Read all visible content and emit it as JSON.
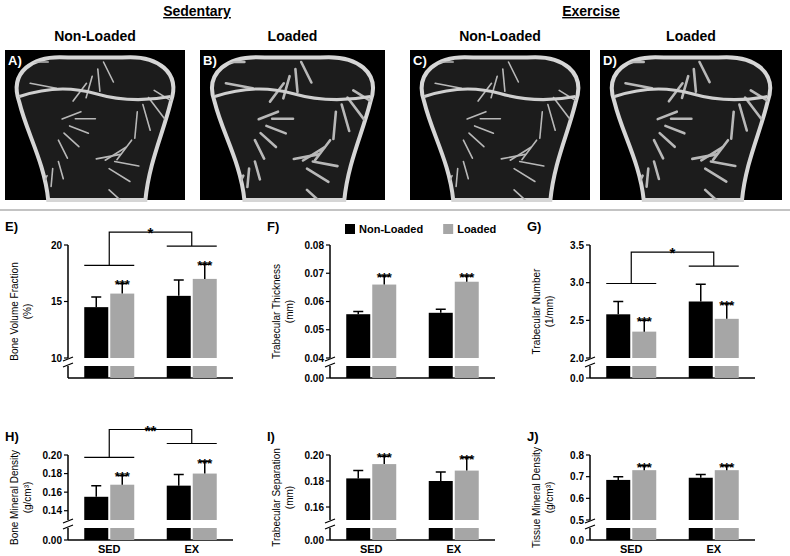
{
  "images": {
    "groups": [
      {
        "title": "Sedentary",
        "panels": [
          {
            "label": "A)",
            "title": "Non-Loaded"
          },
          {
            "label": "B)",
            "title": "Loaded"
          }
        ]
      },
      {
        "title": "Exercise",
        "panels": [
          {
            "label": "C)",
            "title": "Non-Loaded"
          },
          {
            "label": "D)",
            "title": "Loaded"
          }
        ]
      }
    ]
  },
  "chart_data": [
    {
      "type": "bar",
      "panel": "E)",
      "y_label": [
        "Bone Volume Fraction",
        "(%)"
      ],
      "categories": [
        "SED",
        "EX"
      ],
      "series": [
        {
          "name": "Non-Loaded",
          "color": "#000000",
          "values": [
            14.5,
            15.5
          ],
          "errors": [
            0.9,
            1.4
          ]
        },
        {
          "name": "Loaded",
          "color": "#a6a6a6",
          "values": [
            15.7,
            17.0
          ],
          "errors": [
            0.9,
            1.3
          ]
        }
      ],
      "ylim": [
        10,
        20
      ],
      "yticks": [
        10,
        15,
        20
      ],
      "break": {
        "ylim": [
          0,
          2
        ],
        "yticks": []
      },
      "annotations": [
        {
          "text": "***",
          "category": 0,
          "series": 1
        },
        {
          "text": "***",
          "category": 1,
          "series": 1
        }
      ],
      "bracket": {
        "text": "*"
      },
      "grid": false,
      "tick_labels": "y"
    },
    {
      "type": "bar",
      "panel": "F)",
      "y_label": [
        "Trabecular Thickness",
        "(mm)"
      ],
      "categories": [
        "SED",
        "EX"
      ],
      "series": [
        {
          "name": "Non-Loaded",
          "color": "#000000",
          "values": [
            0.0555,
            0.056
          ],
          "errors": [
            0.001,
            0.0013
          ]
        },
        {
          "name": "Loaded",
          "color": "#a6a6a6",
          "values": [
            0.066,
            0.067
          ],
          "errors": [
            0.003,
            0.002
          ]
        }
      ],
      "ylim": [
        0.04,
        0.08
      ],
      "yticks": [
        0.04,
        0.05,
        0.06,
        0.07,
        0.08
      ],
      "break": {
        "ylim": [
          0,
          0.01
        ],
        "yticks": [
          {
            "value": 0,
            "label": "0.00"
          }
        ]
      },
      "annotations": [
        {
          "text": "***",
          "category": 0,
          "series": 1
        },
        {
          "text": "***",
          "category": 1,
          "series": 1
        }
      ],
      "legend": "top",
      "grid": false,
      "tick_labels": "y"
    },
    {
      "type": "bar",
      "panel": "G)",
      "y_label": [
        "Trabecular Number",
        "(1/mm)"
      ],
      "categories": [
        "SED",
        "EX"
      ],
      "series": [
        {
          "name": "Non-Loaded",
          "color": "#000000",
          "values": [
            2.58,
            2.75
          ],
          "errors": [
            0.17,
            0.23
          ]
        },
        {
          "name": "Loaded",
          "color": "#a6a6a6",
          "values": [
            2.35,
            2.52
          ],
          "errors": [
            0.15,
            0.2
          ]
        }
      ],
      "ylim": [
        2,
        3.5
      ],
      "yticks": [
        {
          "value": 2,
          "label": "2.0"
        },
        2.5,
        {
          "value": 3,
          "label": "3.0"
        },
        3.5
      ],
      "break": {
        "ylim": [
          0,
          0.5
        ],
        "yticks": [
          {
            "value": 0,
            "label": "0.0"
          }
        ]
      },
      "annotations": [
        {
          "text": "***",
          "category": 0,
          "series": 1
        },
        {
          "text": "***",
          "category": 1,
          "series": 1
        }
      ],
      "bracket": {
        "text": "*"
      },
      "grid": false,
      "tick_labels": "y"
    },
    {
      "type": "bar",
      "panel": "H)",
      "y_label": [
        "Bone Mineral Density",
        "(g/cm³)"
      ],
      "categories": [
        "SED",
        "EX"
      ],
      "series": [
        {
          "name": "Non-Loaded",
          "color": "#000000",
          "values": [
            0.155,
            0.167
          ],
          "errors": [
            0.012,
            0.012
          ]
        },
        {
          "name": "Loaded",
          "color": "#a6a6a6",
          "values": [
            0.168,
            0.18
          ],
          "errors": [
            0.01,
            0.013
          ]
        }
      ],
      "ylim": [
        0.13,
        0.2
      ],
      "yticks": [
        0.14,
        0.16,
        0.18,
        {
          "value": 0.2,
          "label": "0.20"
        }
      ],
      "break": {
        "ylim": [
          0,
          0.02
        ],
        "yticks": [
          {
            "value": 0,
            "label": "0.00"
          }
        ]
      },
      "annotations": [
        {
          "text": "***",
          "category": 0,
          "series": 1
        },
        {
          "text": "***",
          "category": 1,
          "series": 1
        }
      ],
      "bracket": {
        "text": "**"
      },
      "grid": false
    },
    {
      "type": "bar",
      "panel": "I)",
      "y_label": [
        "Trabecular Separation",
        "(mm)"
      ],
      "categories": [
        "SED",
        "EX"
      ],
      "series": [
        {
          "name": "Non-Loaded",
          "color": "#000000",
          "values": [
            0.182,
            0.18
          ],
          "errors": [
            0.006,
            0.007
          ]
        },
        {
          "name": "Loaded",
          "color": "#a6a6a6",
          "values": [
            0.193,
            0.188
          ],
          "errors": [
            0.006,
            0.01
          ]
        }
      ],
      "ylim": [
        0.15,
        0.2
      ],
      "yticks": [
        0.16,
        0.18,
        {
          "value": 0.2,
          "label": "0.20"
        }
      ],
      "break": {
        "ylim": [
          0,
          0.02
        ],
        "yticks": [
          {
            "value": 0,
            "label": "0.00"
          }
        ]
      },
      "annotations": [
        {
          "text": "***",
          "category": 0,
          "series": 1
        },
        {
          "text": "***",
          "category": 1,
          "series": 1
        }
      ],
      "grid": false
    },
    {
      "type": "bar",
      "panel": "J)",
      "y_label": [
        "Tissue Mineral Density",
        "(g/cm³)"
      ],
      "categories": [
        "SED",
        "EX"
      ],
      "series": [
        {
          "name": "Non-Loaded",
          "color": "#000000",
          "values": [
            0.685,
            0.695
          ],
          "errors": [
            0.015,
            0.015
          ]
        },
        {
          "name": "Loaded",
          "color": "#a6a6a6",
          "values": [
            0.73,
            0.73
          ],
          "errors": [
            0.02,
            0.02
          ]
        }
      ],
      "ylim": [
        0.5,
        0.8
      ],
      "yticks": [
        0.5,
        0.6,
        0.7,
        0.8
      ],
      "break": {
        "ylim": [
          0,
          0.1
        ],
        "yticks": [
          {
            "value": 0,
            "label": "0.0"
          }
        ]
      },
      "annotations": [
        {
          "text": "***",
          "category": 0,
          "series": 1
        },
        {
          "text": "***",
          "category": 1,
          "series": 1
        }
      ],
      "grid": false
    }
  ]
}
